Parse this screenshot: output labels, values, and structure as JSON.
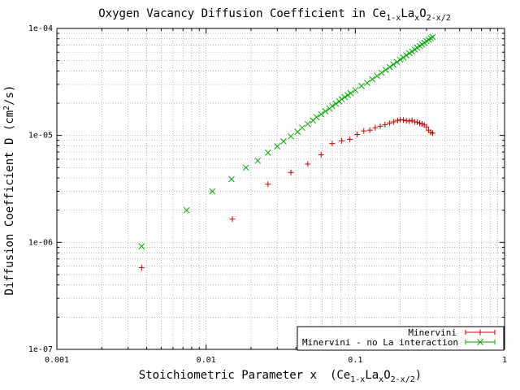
{
  "chart_data": {
    "type": "scatter",
    "title": {
      "prefix": "Oxygen Vacancy Diffusion Coefficient in Ce",
      "sub1": "1-x",
      "mid": "La",
      "sub2": "x",
      "mid2": "O",
      "sub3": "2-x/2"
    },
    "xlabel": {
      "text": "Stoichiometric Parameter x",
      "formula_prefix": "(Ce",
      "sub1": "1-x",
      "mid": "La",
      "sub2": "x",
      "mid2": "O",
      "sub3": "2-x/2",
      "close": ")"
    },
    "ylabel": {
      "prefix": "Diffusion Coefficient D (cm",
      "sup": "2",
      "suffix": "/s)"
    },
    "x_scale": "log",
    "y_scale": "log",
    "xlim": [
      0.001,
      1
    ],
    "ylim": [
      1e-07,
      0.0001
    ],
    "x_ticks": [
      {
        "value": 0.001,
        "label": "0.001"
      },
      {
        "value": 0.01,
        "label": "0.01"
      },
      {
        "value": 0.1,
        "label": "0.1"
      },
      {
        "value": 1,
        "label": "1"
      }
    ],
    "y_ticks": [
      {
        "value": 1e-07,
        "label": "1e-07"
      },
      {
        "value": 1e-06,
        "label": "1e-06"
      },
      {
        "value": 1e-05,
        "label": "1e-05"
      },
      {
        "value": 0.0001,
        "label": "1e-04"
      }
    ],
    "grid": true,
    "legend_position": "bottom-right",
    "series": [
      {
        "name": "Minervini",
        "marker": "plus",
        "color": "#cc0000",
        "points": [
          [
            0.0037,
            5.8e-07
          ],
          [
            0.015,
            1.65e-06
          ],
          [
            0.026,
            3.5e-06
          ],
          [
            0.037,
            4.5e-06
          ],
          [
            0.048,
            5.4e-06
          ],
          [
            0.059,
            6.6e-06
          ],
          [
            0.07,
            8.4e-06
          ],
          [
            0.081,
            8.9e-06
          ],
          [
            0.092,
            9.2e-06
          ],
          [
            0.103,
            1.02e-05
          ],
          [
            0.114,
            1.1e-05
          ],
          [
            0.125,
            1.12e-05
          ],
          [
            0.136,
            1.18e-05
          ],
          [
            0.147,
            1.22e-05
          ],
          [
            0.158,
            1.26e-05
          ],
          [
            0.17,
            1.3e-05
          ],
          [
            0.181,
            1.34e-05
          ],
          [
            0.192,
            1.38e-05
          ],
          [
            0.2,
            1.4e-05
          ],
          [
            0.21,
            1.39e-05
          ],
          [
            0.22,
            1.37e-05
          ],
          [
            0.23,
            1.36e-05
          ],
          [
            0.24,
            1.38e-05
          ],
          [
            0.25,
            1.34e-05
          ],
          [
            0.26,
            1.33e-05
          ],
          [
            0.27,
            1.3e-05
          ],
          [
            0.28,
            1.28e-05
          ],
          [
            0.29,
            1.25e-05
          ],
          [
            0.3,
            1.2e-05
          ],
          [
            0.31,
            1.12e-05
          ],
          [
            0.32,
            1.07e-05
          ],
          [
            0.33,
            1.05e-05
          ]
        ]
      },
      {
        "name": "Minervini - no La interaction",
        "marker": "cross",
        "color": "#00aa00",
        "points": [
          [
            0.0037,
            9.2e-07
          ],
          [
            0.0074,
            2e-06
          ],
          [
            0.011,
            3e-06
          ],
          [
            0.0148,
            3.9e-06
          ],
          [
            0.0185,
            5e-06
          ],
          [
            0.0222,
            5.8e-06
          ],
          [
            0.026,
            6.9e-06
          ],
          [
            0.03,
            7.9e-06
          ],
          [
            0.033,
            8.8e-06
          ],
          [
            0.037,
            9.8e-06
          ],
          [
            0.041,
            1.08e-05
          ],
          [
            0.044,
            1.18e-05
          ],
          [
            0.048,
            1.28e-05
          ],
          [
            0.052,
            1.38e-05
          ],
          [
            0.055,
            1.48e-05
          ],
          [
            0.059,
            1.58e-05
          ],
          [
            0.063,
            1.68e-05
          ],
          [
            0.067,
            1.78e-05
          ],
          [
            0.07,
            1.88e-05
          ],
          [
            0.074,
            1.98e-05
          ],
          [
            0.078,
            2.08e-05
          ],
          [
            0.081,
            2.18e-05
          ],
          [
            0.085,
            2.28e-05
          ],
          [
            0.089,
            2.38e-05
          ],
          [
            0.093,
            2.48e-05
          ],
          [
            0.1,
            2.65e-05
          ],
          [
            0.11,
            2.9e-05
          ],
          [
            0.12,
            3.1e-05
          ],
          [
            0.13,
            3.35e-05
          ],
          [
            0.14,
            3.6e-05
          ],
          [
            0.15,
            3.85e-05
          ],
          [
            0.16,
            4.1e-05
          ],
          [
            0.17,
            4.35e-05
          ],
          [
            0.18,
            4.6e-05
          ],
          [
            0.19,
            4.85e-05
          ],
          [
            0.2,
            5.1e-05
          ],
          [
            0.21,
            5.35e-05
          ],
          [
            0.22,
            5.6e-05
          ],
          [
            0.23,
            5.85e-05
          ],
          [
            0.24,
            6.1e-05
          ],
          [
            0.25,
            6.35e-05
          ],
          [
            0.26,
            6.6e-05
          ],
          [
            0.27,
            6.85e-05
          ],
          [
            0.28,
            7.1e-05
          ],
          [
            0.29,
            7.35e-05
          ],
          [
            0.3,
            7.6e-05
          ],
          [
            0.31,
            7.85e-05
          ],
          [
            0.32,
            8.1e-05
          ],
          [
            0.33,
            8.3e-05
          ]
        ]
      }
    ]
  }
}
